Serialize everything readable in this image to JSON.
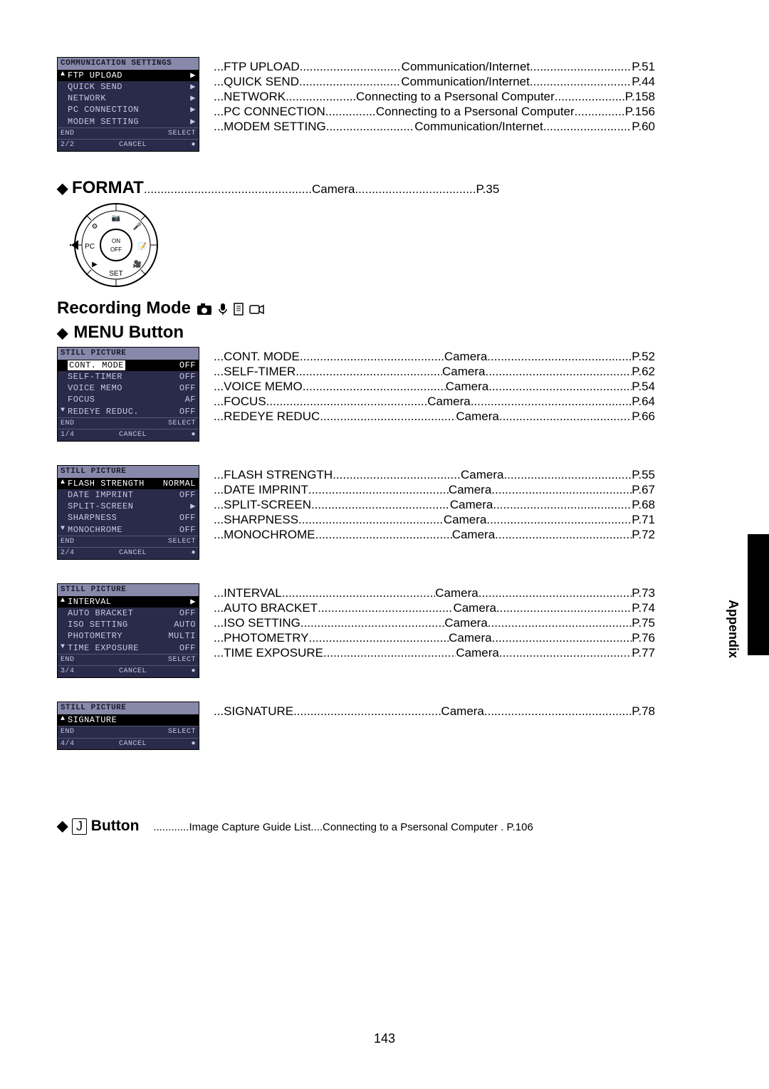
{
  "page_number": "143",
  "side_tab": "Appendix",
  "colors": {
    "lcd_bg": "#2a2a4a",
    "lcd_text": "#c8c8e0",
    "lcd_title_bg": "#8888aa",
    "lcd_title_text": "#1a1a2a",
    "page_bg": "#ffffff",
    "text": "#000000"
  },
  "lcd_common": {
    "end": "END",
    "select": "SELECT",
    "cancel": "CANCEL",
    "dot": "●"
  },
  "lcd1": {
    "title": "COMMUNICATION SETTINGS",
    "page": "2/2",
    "items": [
      {
        "tri": "▲",
        "label": "FTP UPLOAD",
        "value": "▶",
        "hl": true
      },
      {
        "tri": "",
        "label": "QUICK SEND",
        "value": "▶"
      },
      {
        "tri": "",
        "label": "NETWORK",
        "value": "▶"
      },
      {
        "tri": "",
        "label": "PC CONNECTION",
        "value": "▶"
      },
      {
        "tri": "",
        "label": "MODEM SETTING",
        "value": "▶"
      }
    ]
  },
  "refs1": [
    {
      "name": "FTP UPLOAD",
      "cat": "Communication/Internet",
      "pg": "P.51"
    },
    {
      "name": "QUICK SEND",
      "cat": "Communication/Internet",
      "pg": "P.44"
    },
    {
      "name": "NETWORK",
      "cat": "Connecting to a Psersonal Computer",
      "pg": "P.158",
      "narrow": true
    },
    {
      "name": "PC CONNECTION",
      "cat": "Connecting to a Psersonal Computer",
      "pg": "P.156",
      "narrow": true
    },
    {
      "name": "MODEM SETTING",
      "cat": "Communication/Internet",
      "pg": "P.60"
    }
  ],
  "format_heading": {
    "name": "FORMAT",
    "cat": "Camera",
    "pg": "P.35"
  },
  "recording_mode_label": "Recording Mode",
  "menu_button_label": "MENU Button",
  "lcd2": {
    "title": "STILL PICTURE",
    "page": "1/4",
    "items": [
      {
        "tri": "",
        "label": "CONT. MODE",
        "value": "OFF",
        "hl": true,
        "box": true
      },
      {
        "tri": "",
        "label": "SELF-TIMER",
        "value": "OFF"
      },
      {
        "tri": "",
        "label": "VOICE MEMO",
        "value": "OFF"
      },
      {
        "tri": "",
        "label": "FOCUS",
        "value": "AF"
      },
      {
        "tri": "▼",
        "label": "REDEYE REDUC.",
        "value": "OFF"
      }
    ]
  },
  "refs2": [
    {
      "name": "CONT. MODE",
      "cat": "Camera",
      "pg": "P.52"
    },
    {
      "name": "SELF-TIMER",
      "cat": "Camera",
      "pg": "P.62"
    },
    {
      "name": "VOICE MEMO",
      "cat": "Camera",
      "pg": "P.54"
    },
    {
      "name": "FOCUS",
      "cat": "Camera",
      "pg": "P.64"
    },
    {
      "name": "REDEYE REDUC.",
      "cat": "Camera",
      "pg": "P.66"
    }
  ],
  "lcd3": {
    "title": "STILL PICTURE",
    "page": "2/4",
    "items": [
      {
        "tri": "▲",
        "label": "FLASH STRENGTH",
        "value": "NORMAL",
        "hl": true
      },
      {
        "tri": "",
        "label": "DATE IMPRINT",
        "value": "OFF"
      },
      {
        "tri": "",
        "label": "SPLIT-SCREEN",
        "value": "▶"
      },
      {
        "tri": "",
        "label": "SHARPNESS",
        "value": "OFF"
      },
      {
        "tri": "▼",
        "label": "MONOCHROME",
        "value": "OFF"
      }
    ]
  },
  "refs3": [
    {
      "name": "FLASH STRENGTH",
      "cat": "Camera",
      "pg": "P.55"
    },
    {
      "name": "DATE IMPRINT",
      "cat": "Camera",
      "pg": "P.67"
    },
    {
      "name": "SPLIT-SCREEN",
      "cat": "Camera",
      "pg": "P.68"
    },
    {
      "name": "SHARPNESS",
      "cat": "Camera",
      "pg": "P.71"
    },
    {
      "name": "MONOCHROME",
      "cat": "Camera",
      "pg": "P.72"
    }
  ],
  "lcd4": {
    "title": "STILL PICTURE",
    "page": "3/4",
    "items": [
      {
        "tri": "▲",
        "label": "INTERVAL",
        "value": "▶",
        "hl": true
      },
      {
        "tri": "",
        "label": "AUTO BRACKET",
        "value": "OFF"
      },
      {
        "tri": "",
        "label": "ISO SETTING",
        "value": "AUTO"
      },
      {
        "tri": "",
        "label": "PHOTOMETRY",
        "value": "MULTI"
      },
      {
        "tri": "▼",
        "label": "TIME EXPOSURE",
        "value": "OFF"
      }
    ]
  },
  "refs4": [
    {
      "name": "INTERVAL",
      "cat": "Camera",
      "pg": "P.73"
    },
    {
      "name": "AUTO BRACKET",
      "cat": "Camera",
      "pg": "P.74"
    },
    {
      "name": "ISO SETTING",
      "cat": "Camera",
      "pg": "P.75"
    },
    {
      "name": "PHOTOMETRY",
      "cat": "Camera",
      "pg": "P.76"
    },
    {
      "name": "TIME EXPOSURE",
      "cat": "Camera",
      "pg": "P.77"
    }
  ],
  "lcd5": {
    "title": "STILL PICTURE",
    "page": "4/4",
    "items": [
      {
        "tri": "▲",
        "label": "SIGNATURE",
        "value": "",
        "hl": true
      },
      {
        "tri": "",
        "label": "",
        "value": ""
      },
      {
        "tri": "",
        "label": "",
        "value": ""
      },
      {
        "tri": "",
        "label": "",
        "value": ""
      },
      {
        "tri": "",
        "label": "",
        "value": ""
      }
    ]
  },
  "refs5": [
    {
      "name": "SIGNATURE",
      "cat": "Camera",
      "pg": "P.78"
    }
  ],
  "j_button": {
    "label": "Button",
    "key": "J",
    "name": "Image Capture Guide List",
    "cat": "Connecting to a Psersonal Computer",
    "pg": "P.106"
  }
}
